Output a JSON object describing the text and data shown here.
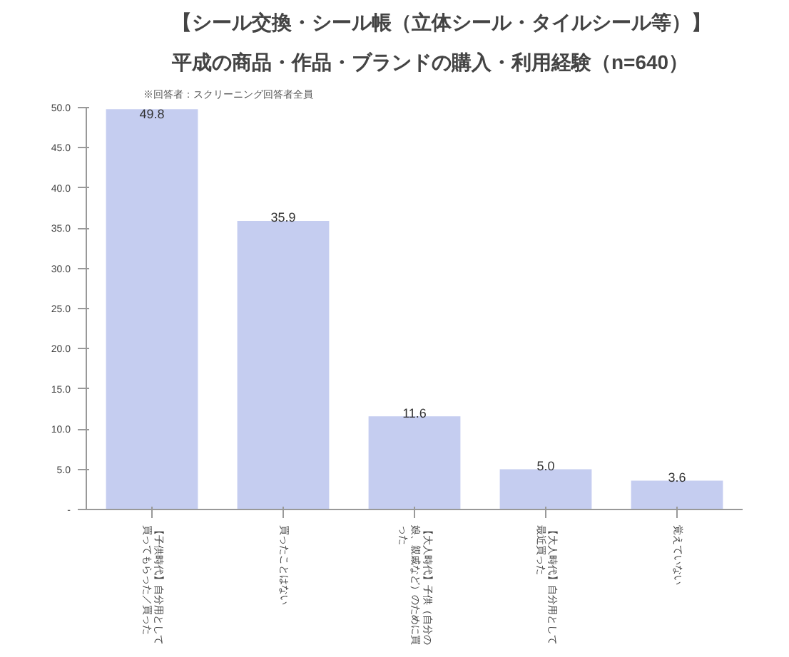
{
  "chart_data": {
    "type": "bar",
    "title": "【シール交換・シール帳（立体シール・タイルシール等）】",
    "subtitle": "平成の商品・作品・ブランドの購入・利用経験（n=640）",
    "annotations": [
      "※回答者：スクリーニング回答者全員"
    ],
    "categories": [
      "【子供時代】自分用として買ってもらった／買った",
      "買ったことはない",
      "【大人時代】子供（自分の娘、親戚など）のために買った",
      "【大人時代】自分用として最近買った",
      "覚えていない"
    ],
    "values": [
      49.8,
      35.9,
      11.6,
      5.0,
      3.6
    ],
    "value_labels": [
      "49.8",
      "35.9",
      "11.6",
      "5.0",
      "3.6"
    ],
    "color": "#c5cdf0",
    "ylim": [
      0,
      50
    ],
    "yticks": [
      {
        "value": 0,
        "label": "-"
      },
      {
        "value": 5,
        "label": "5.0"
      },
      {
        "value": 10,
        "label": "10.0"
      },
      {
        "value": 15,
        "label": "15.0"
      },
      {
        "value": 20,
        "label": "20.0"
      },
      {
        "value": 25,
        "label": "25.0"
      },
      {
        "value": 30,
        "label": "30.0"
      },
      {
        "value": 35,
        "label": "35.0"
      },
      {
        "value": 40,
        "label": "40.0"
      },
      {
        "value": 45,
        "label": "45.0"
      },
      {
        "value": 50,
        "label": "50.0"
      }
    ],
    "grid": false
  }
}
